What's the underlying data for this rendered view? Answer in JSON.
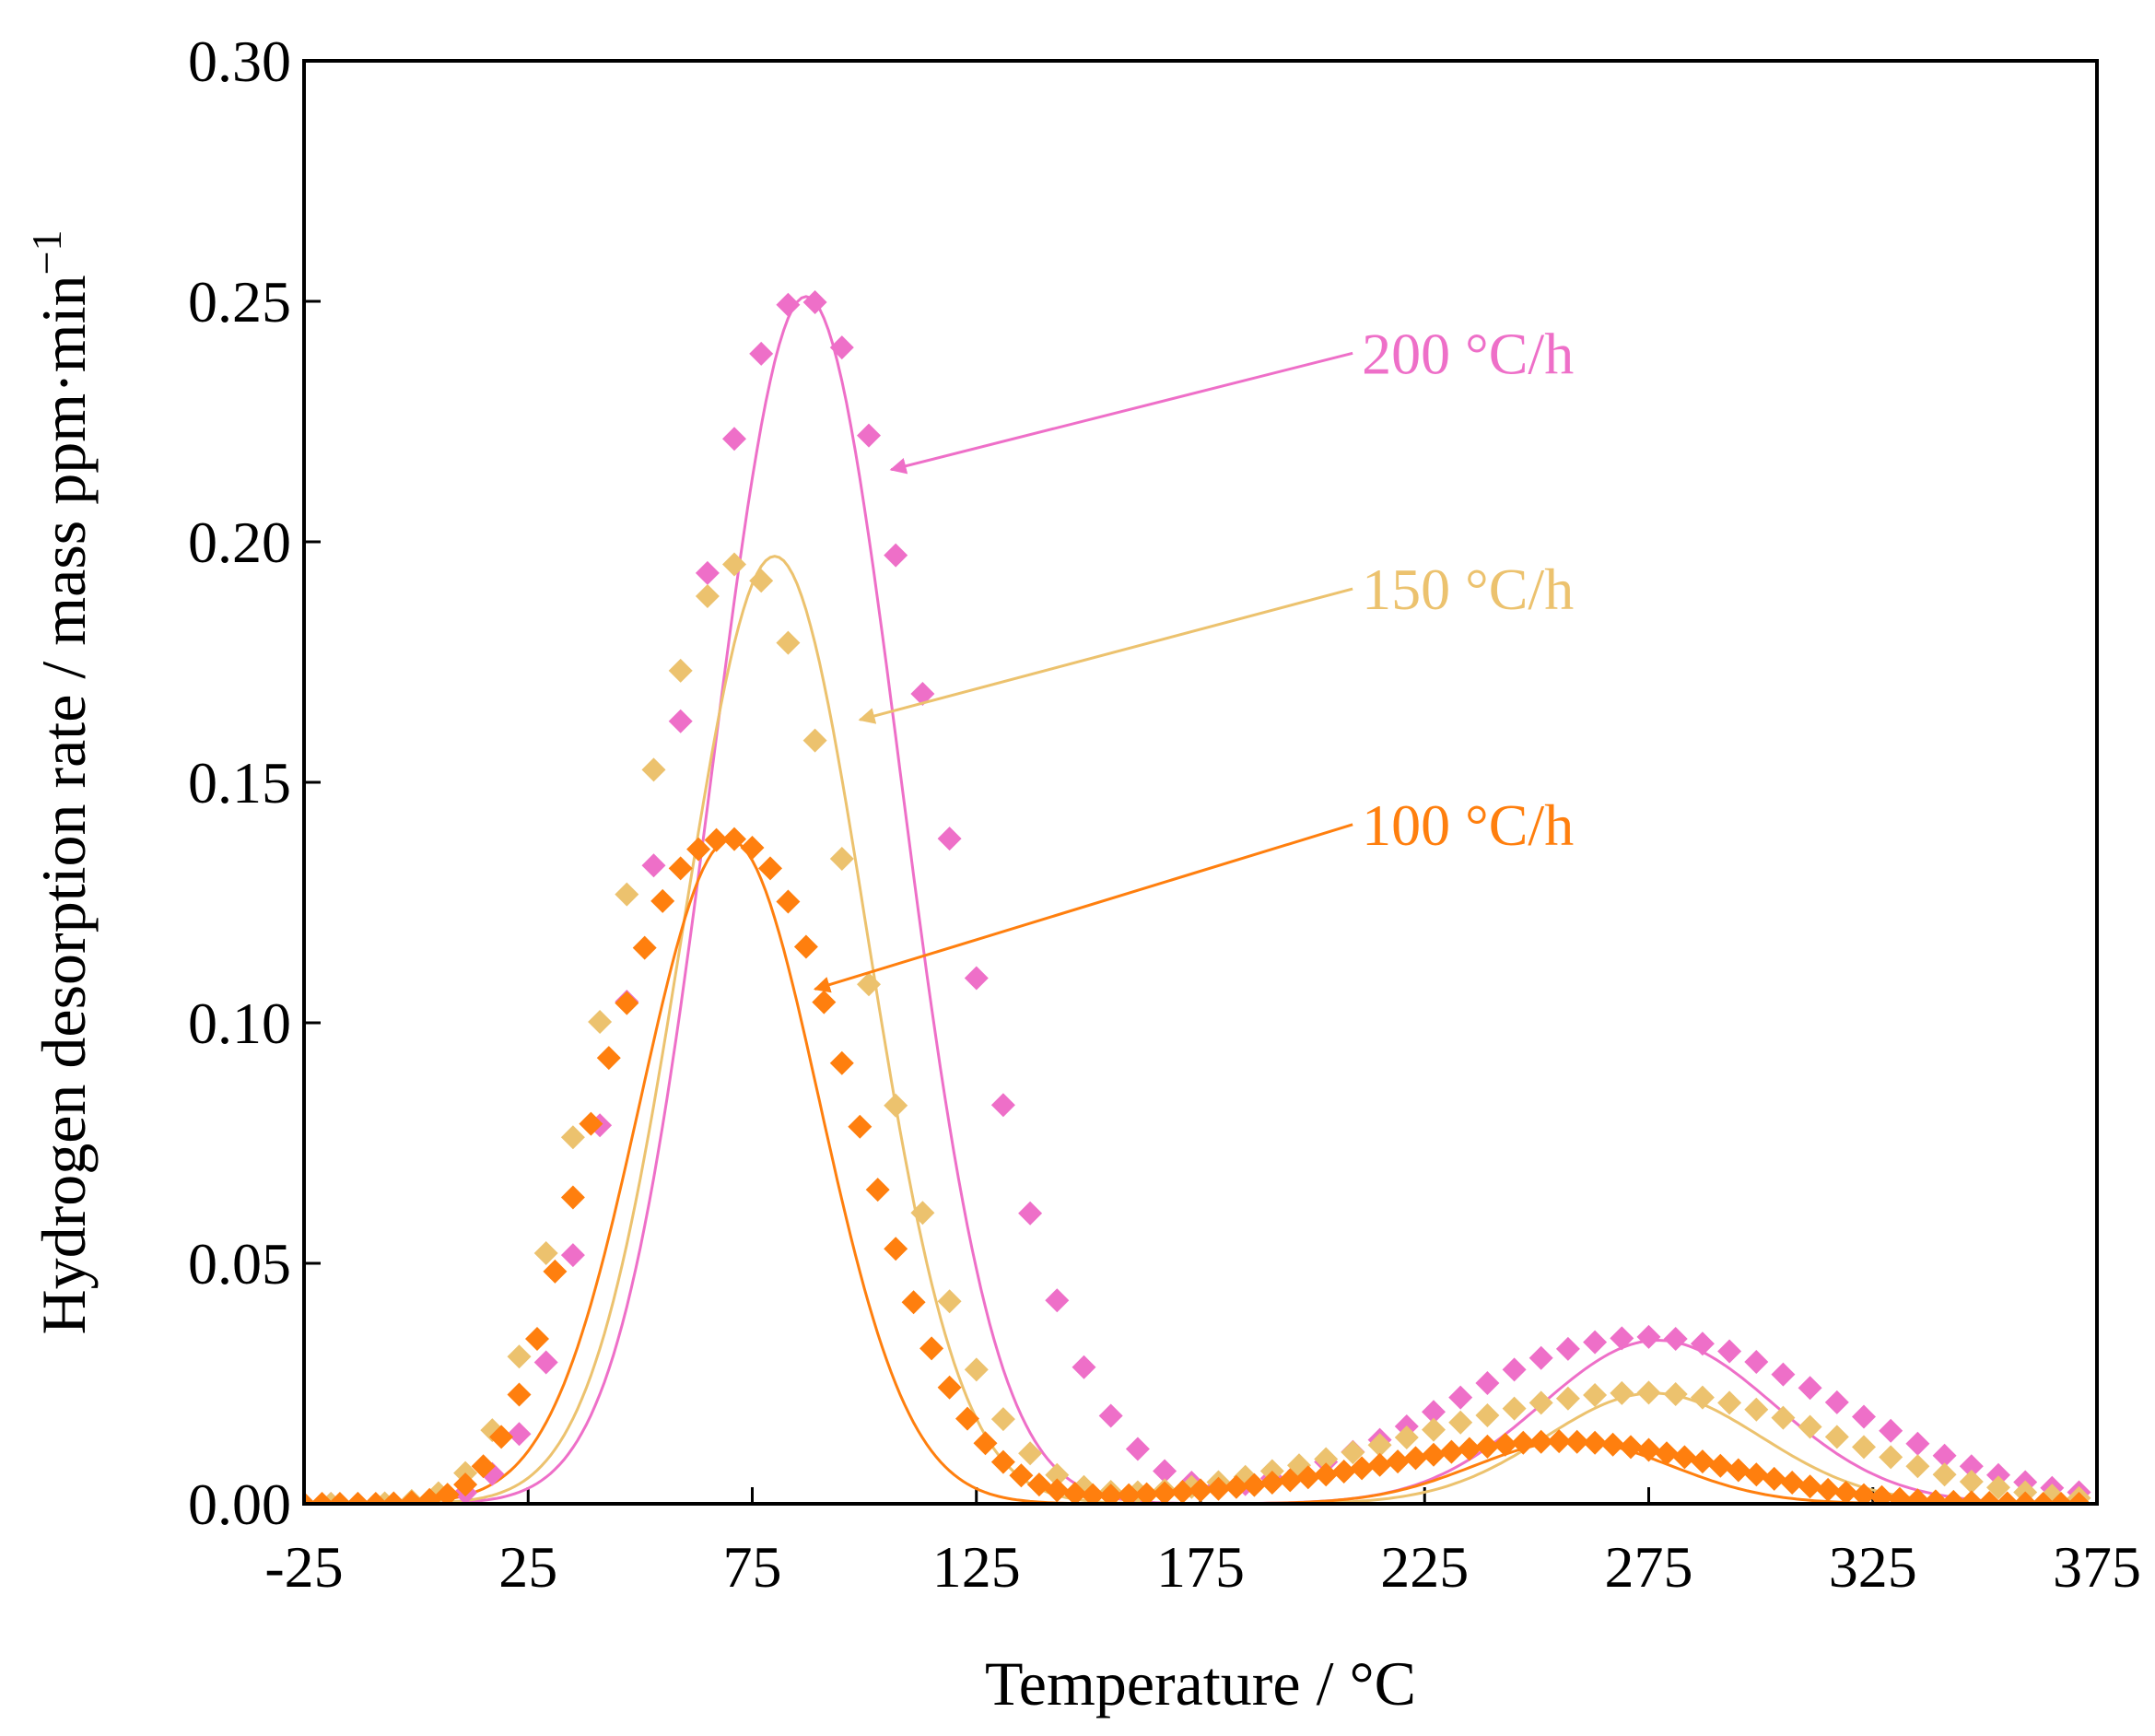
{
  "chart_data": {
    "type": "scatter",
    "title": "",
    "xlabel": "Temperature / °C",
    "ylabel": "Hydrogen desorption rate / mass ppm·min",
    "ylabel_sup": "−1",
    "xlim": [
      -25,
      375
    ],
    "ylim": [
      0,
      0.3
    ],
    "xticks": [
      -25,
      25,
      75,
      125,
      175,
      225,
      275,
      325,
      375
    ],
    "xtick_labels": [
      "-25",
      "25",
      "75",
      "125",
      "175",
      "225",
      "275",
      "325",
      "375"
    ],
    "yticks": [
      0,
      0.05,
      0.1,
      0.15,
      0.2,
      0.25,
      0.3
    ],
    "ytick_labels": [
      "0.00",
      "0.05",
      "0.10",
      "0.15",
      "0.20",
      "0.25",
      "0.30"
    ],
    "grid": false,
    "legend": "annotations",
    "series": [
      {
        "name": "200 °C/h",
        "color": "#ee6fc8",
        "marker": "diamond",
        "label": "200 °C/h",
        "fit": [
          {
            "amp": 0.251,
            "center": 87,
            "sigma": 21
          },
          {
            "amp": 0.034,
            "center": 277,
            "sigma": 26
          }
        ],
        "x": [
          -25,
          -19,
          -13,
          -7,
          -1,
          5,
          11,
          17,
          23,
          29,
          35,
          41,
          47,
          53,
          59,
          65,
          71,
          77,
          83,
          89,
          95,
          101,
          107,
          113,
          119,
          125,
          131,
          137,
          143,
          149,
          155,
          161,
          167,
          173,
          179,
          185,
          191,
          197,
          203,
          209,
          215,
          221,
          227,
          233,
          239,
          245,
          251,
          257,
          263,
          269,
          275,
          281,
          287,
          293,
          299,
          305,
          311,
          317,
          323,
          329,
          335,
          341,
          347,
          353,
          359,
          365,
          371
        ],
        "y": [
          0.0,
          0.0,
          0.0,
          0.0,
          0.0002,
          0.0007,
          0.0023,
          0.0062,
          0.0145,
          0.0294,
          0.0517,
          0.0787,
          0.1044,
          0.1327,
          0.1627,
          0.1935,
          0.2214,
          0.2391,
          0.2493,
          0.2498,
          0.2404,
          0.2221,
          0.1972,
          0.1684,
          0.1383,
          0.1093,
          0.0829,
          0.0604,
          0.0423,
          0.0284,
          0.0183,
          0.0114,
          0.0068,
          0.0044,
          0.0037,
          0.0041,
          0.0053,
          0.0068,
          0.0087,
          0.0108,
          0.0133,
          0.0161,
          0.0191,
          0.0221,
          0.0251,
          0.0279,
          0.0303,
          0.0322,
          0.0336,
          0.0344,
          0.0347,
          0.0343,
          0.0333,
          0.0317,
          0.0295,
          0.0269,
          0.0241,
          0.0211,
          0.0181,
          0.0152,
          0.0125,
          0.01,
          0.0078,
          0.006,
          0.0045,
          0.0033,
          0.0024
        ]
      },
      {
        "name": "150 °C/h",
        "color": "#ecc26e",
        "marker": "diamond",
        "label": "150 °C/h",
        "fit": [
          {
            "amp": 0.197,
            "center": 80,
            "sigma": 20.5
          },
          {
            "amp": 0.023,
            "center": 276,
            "sigma": 24
          }
        ],
        "x": [
          -25,
          -19,
          -13,
          -7,
          -1,
          5,
          11,
          17,
          23,
          29,
          35,
          41,
          47,
          53,
          59,
          65,
          71,
          77,
          83,
          89,
          95,
          101,
          107,
          113,
          119,
          125,
          131,
          137,
          143,
          149,
          155,
          161,
          167,
          173,
          179,
          185,
          191,
          197,
          203,
          209,
          215,
          221,
          227,
          233,
          239,
          245,
          251,
          257,
          263,
          269,
          275,
          281,
          287,
          293,
          299,
          305,
          311,
          317,
          323,
          329,
          335,
          341,
          347,
          353,
          359,
          365,
          371
        ],
        "y": [
          0.0,
          0.0,
          0.0,
          0.0001,
          0.0006,
          0.0022,
          0.0064,
          0.0153,
          0.0306,
          0.0521,
          0.0762,
          0.1002,
          0.1267,
          0.1526,
          0.1732,
          0.1887,
          0.1953,
          0.1919,
          0.179,
          0.1587,
          0.1341,
          0.108,
          0.0828,
          0.0605,
          0.0421,
          0.0279,
          0.0176,
          0.0105,
          0.006,
          0.0035,
          0.0025,
          0.0024,
          0.0028,
          0.0035,
          0.0045,
          0.0056,
          0.0068,
          0.008,
          0.0093,
          0.0107,
          0.0122,
          0.0138,
          0.0154,
          0.0169,
          0.0184,
          0.0198,
          0.021,
          0.0219,
          0.0226,
          0.023,
          0.0231,
          0.0228,
          0.0221,
          0.021,
          0.0196,
          0.0179,
          0.016,
          0.0139,
          0.0118,
          0.0097,
          0.0078,
          0.0061,
          0.0046,
          0.0034,
          0.0024,
          0.0017,
          0.0012
        ]
      },
      {
        "name": "100 °C/h",
        "color": "#ff7f0e",
        "marker": "diamond",
        "label": "100 °C/h",
        "fit": [
          {
            "amp": 0.138,
            "center": 70,
            "sigma": 20
          },
          {
            "amp": 0.013,
            "center": 258,
            "sigma": 22
          }
        ],
        "x": [
          -25,
          -21,
          -17,
          -13,
          -9,
          -5,
          -1,
          3,
          7,
          11,
          15,
          19,
          23,
          27,
          31,
          35,
          39,
          43,
          47,
          51,
          55,
          59,
          63,
          67,
          71,
          75,
          79,
          83,
          87,
          91,
          95,
          99,
          103,
          107,
          111,
          115,
          119,
          123,
          127,
          131,
          135,
          139,
          143,
          147,
          151,
          155,
          159,
          163,
          167,
          171,
          175,
          179,
          183,
          187,
          191,
          195,
          199,
          203,
          207,
          211,
          215,
          219,
          223,
          227,
          231,
          235,
          239,
          243,
          247,
          251,
          255,
          259,
          263,
          267,
          271,
          275,
          279,
          283,
          287,
          291,
          295,
          299,
          303,
          307,
          311,
          315,
          319,
          323,
          327,
          331,
          335,
          339,
          343,
          347,
          351,
          355,
          359,
          363,
          367,
          371
        ],
        "y": [
          0.0,
          0.0,
          0.0,
          0.0,
          0.0,
          0.0001,
          0.0003,
          0.0008,
          0.0019,
          0.004,
          0.0078,
          0.0139,
          0.0227,
          0.0343,
          0.0483,
          0.0637,
          0.079,
          0.0927,
          0.1041,
          0.1156,
          0.1253,
          0.1321,
          0.1361,
          0.138,
          0.1382,
          0.1364,
          0.1321,
          0.1252,
          0.1158,
          0.1043,
          0.0916,
          0.0784,
          0.0653,
          0.053,
          0.0419,
          0.0323,
          0.0242,
          0.0177,
          0.0126,
          0.0087,
          0.0059,
          0.004,
          0.0028,
          0.0021,
          0.0018,
          0.0017,
          0.0018,
          0.002,
          0.0022,
          0.0025,
          0.0028,
          0.0031,
          0.0035,
          0.0039,
          0.0044,
          0.0049,
          0.0055,
          0.0061,
          0.0067,
          0.0074,
          0.0081,
          0.0088,
          0.0095,
          0.0102,
          0.0108,
          0.0114,
          0.0119,
          0.0123,
          0.0127,
          0.0129,
          0.013,
          0.0129,
          0.0127,
          0.0123,
          0.0118,
          0.0112,
          0.0105,
          0.0097,
          0.0088,
          0.0079,
          0.007,
          0.0061,
          0.0052,
          0.0044,
          0.0036,
          0.0029,
          0.0023,
          0.0018,
          0.0014,
          0.001,
          0.0007,
          0.0005,
          0.0004,
          0.0003,
          0.0002,
          0.0001,
          0.0001,
          0.0,
          0.0,
          0.0
        ]
      }
    ],
    "annotations": [
      {
        "series": "200 °C/h",
        "text": "200 °C/h",
        "color": "#ee6fc8",
        "text_x": 211,
        "text_y": 0.235,
        "arrow_x": 106,
        "arrow_y": 0.215
      },
      {
        "series": "150 °C/h",
        "text": "150 °C/h",
        "color": "#ecc26e",
        "text_x": 211,
        "text_y": 0.186,
        "arrow_x": 99,
        "arrow_y": 0.163
      },
      {
        "series": "100 °C/h",
        "text": "100 °C/h",
        "color": "#ff7f0e",
        "text_x": 211,
        "text_y": 0.137,
        "arrow_x": 89,
        "arrow_y": 0.107
      }
    ]
  }
}
